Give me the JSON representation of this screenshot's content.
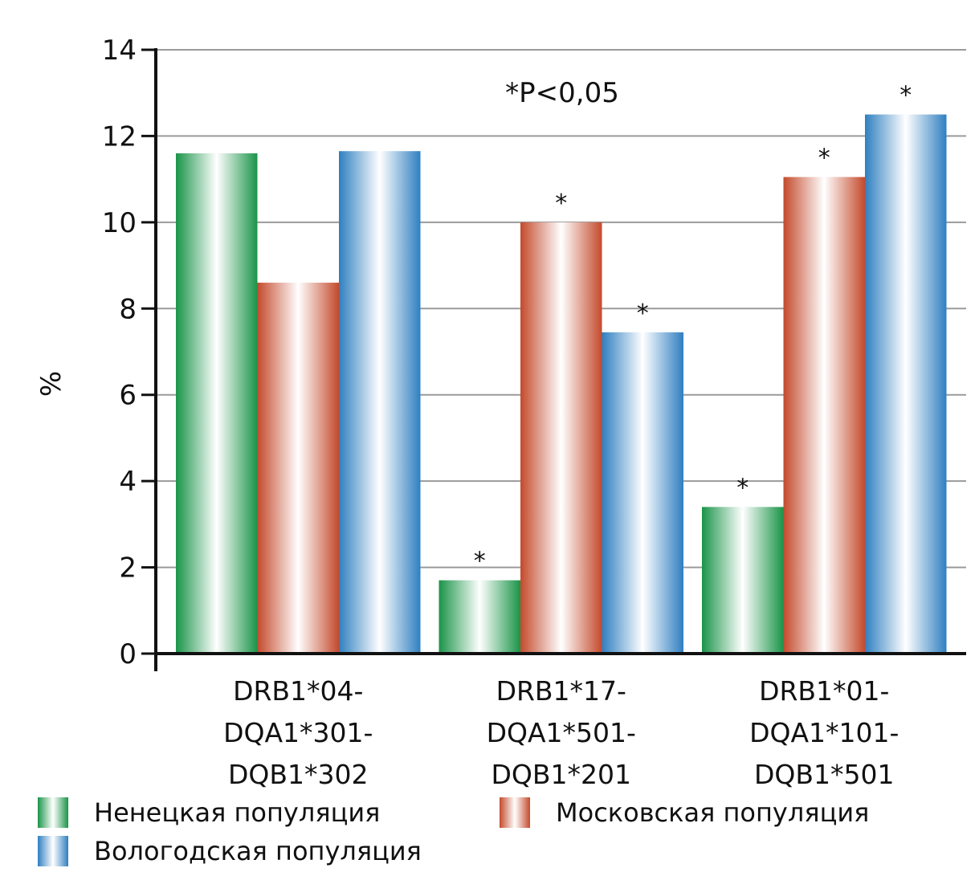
{
  "chart_data": {
    "type": "bar",
    "title": "",
    "ylabel": "%",
    "xlabel": "",
    "ylim": [
      0,
      14
    ],
    "yticks": [
      0,
      2,
      4,
      6,
      8,
      10,
      12,
      14
    ],
    "grid": true,
    "legend_position": "bottom",
    "annotation": "*P<0,05",
    "categories": [
      [
        "DRB1*04-",
        "DQA1*301-",
        "DQB1*302"
      ],
      [
        "DRB1*17-",
        "DQA1*501-",
        "DQB1*201"
      ],
      [
        "DRB1*01-",
        "DQA1*101-",
        "DQB1*501"
      ]
    ],
    "series": [
      {
        "name": "Ненецкая популяция",
        "color": "#1a9448",
        "values": [
          11.6,
          1.7,
          3.4
        ],
        "significant": [
          false,
          true,
          true
        ]
      },
      {
        "name": "Московская популяция",
        "color": "#c44a2c",
        "values": [
          8.6,
          10.0,
          11.05
        ],
        "significant": [
          false,
          true,
          true
        ]
      },
      {
        "name": "Вологодская популяция",
        "color": "#2f7fc0",
        "values": [
          11.65,
          7.45,
          12.5
        ],
        "significant": [
          false,
          true,
          true
        ]
      }
    ],
    "significance_marker": "*"
  }
}
